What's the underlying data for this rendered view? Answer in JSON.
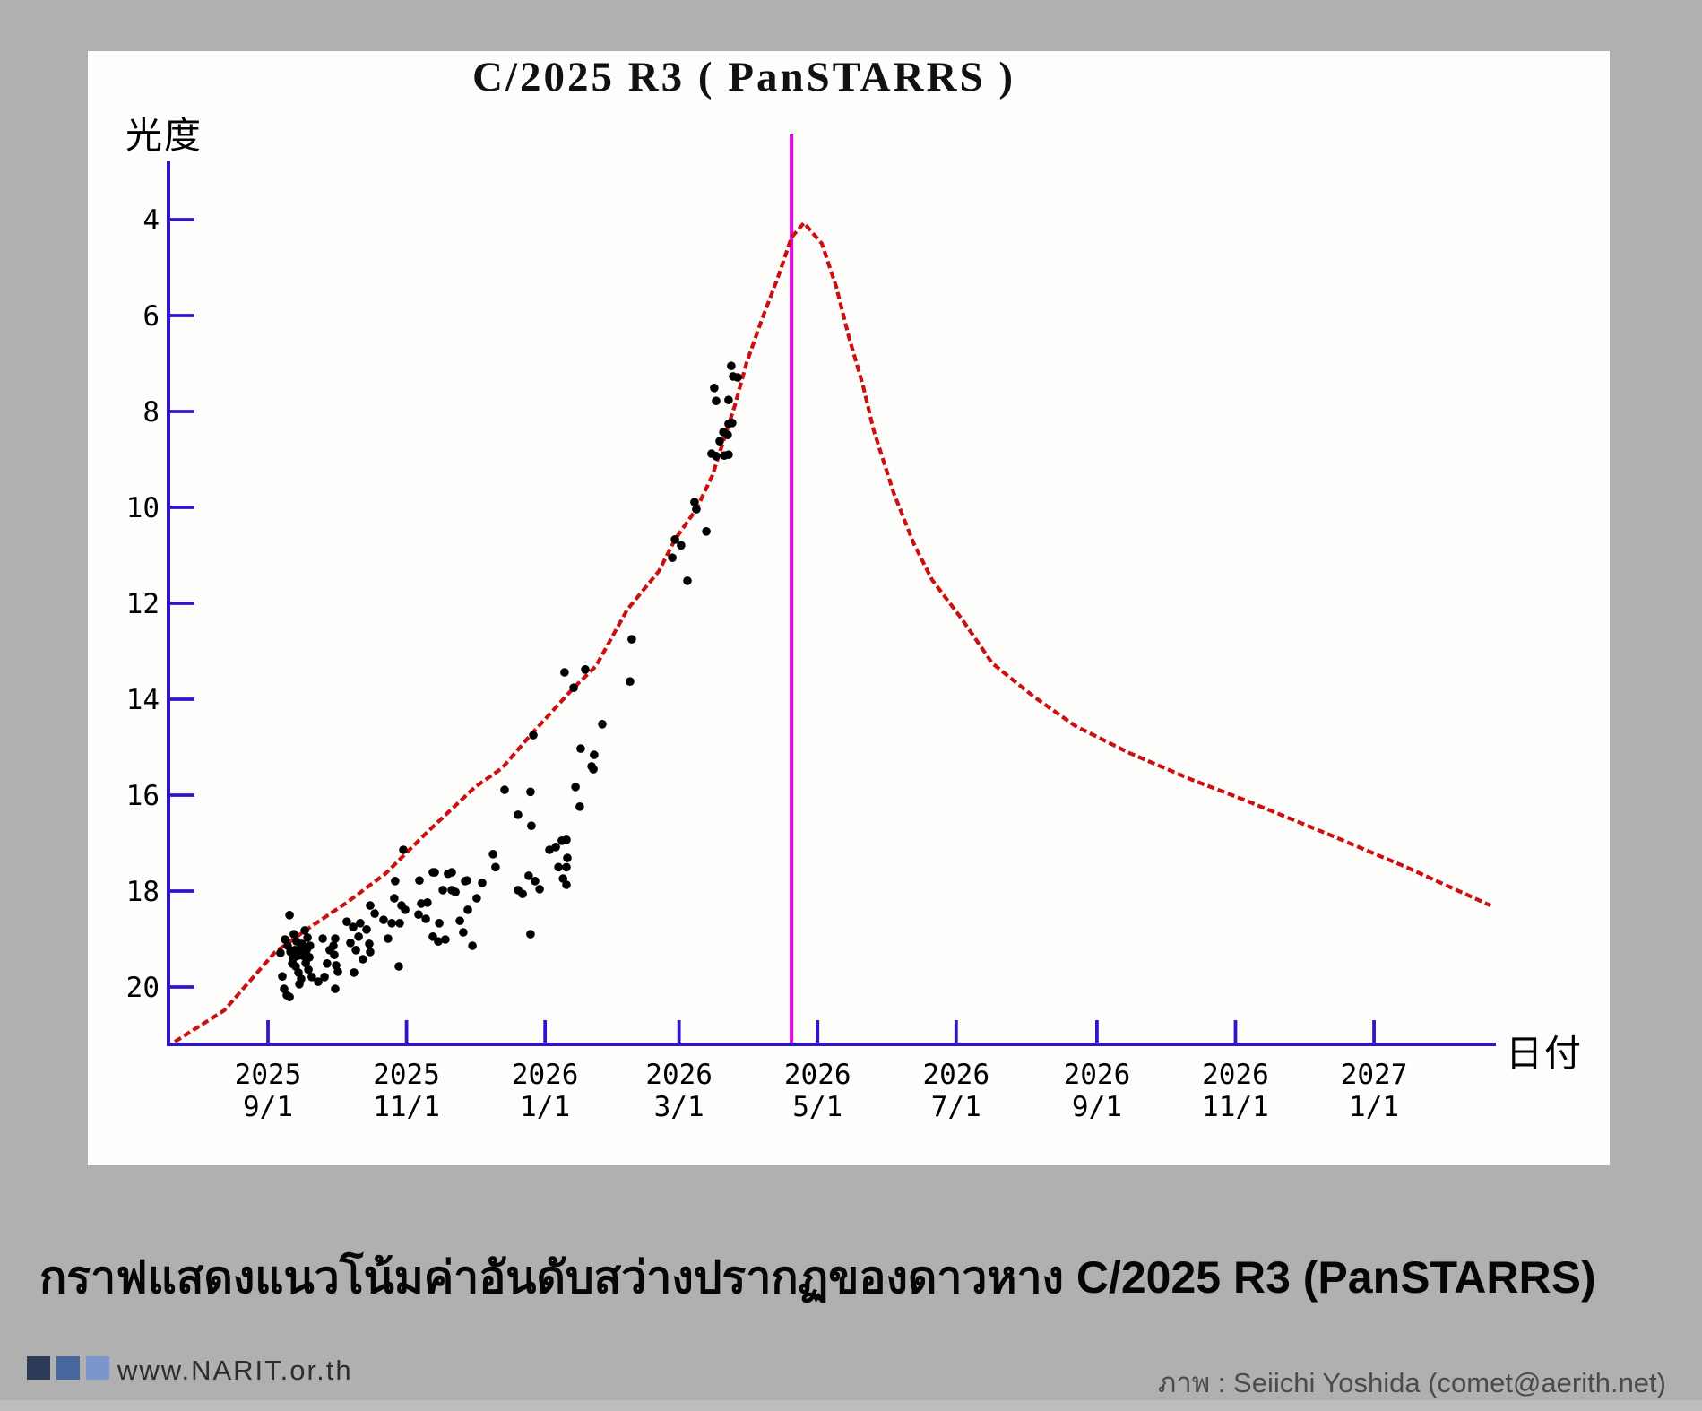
{
  "page": {
    "background": "#b0b0b0",
    "caption": "กราฟแสดงแนวโน้มค่าอันดับสว่างปรากฏของดาวหาง C/2025 R3 (PanSTARRS)",
    "footer": {
      "site": "www.NARIT.or.th",
      "credit": "ภาพ : Seiichi Yoshida (comet@aerith.net)",
      "logo_colors": [
        "#2c3a58",
        "#47689f",
        "#7a97cb"
      ]
    }
  },
  "chart_data": {
    "type": "scatter",
    "title": "C/2025 R3 ( PanSTARRS )",
    "ylabel": "光度",
    "xlabel": "日付",
    "legend": "none",
    "grid": false,
    "y_axis": {
      "inverted": true,
      "ticks": [
        4,
        6,
        8,
        10,
        12,
        14,
        16,
        18,
        20
      ],
      "range_mag": [
        2.8,
        21.2
      ],
      "meaning": "apparent magnitude (brighter = up)"
    },
    "x_axis": {
      "unit": "days since 2025-09-01",
      "range_days": [
        -45,
        545
      ],
      "ticks": [
        {
          "d": 0,
          "label": [
            "2025",
            "9/1"
          ]
        },
        {
          "d": 61,
          "label": [
            "2025",
            "11/1"
          ]
        },
        {
          "d": 122,
          "label": [
            "2026",
            "1/1"
          ]
        },
        {
          "d": 181,
          "label": [
            "2026",
            "3/1"
          ]
        },
        {
          "d": 242,
          "label": [
            "2026",
            "5/1"
          ]
        },
        {
          "d": 303,
          "label": [
            "2026",
            "7/1"
          ]
        },
        {
          "d": 365,
          "label": [
            "2026",
            "9/1"
          ]
        },
        {
          "d": 426,
          "label": [
            "2026",
            "11/1"
          ]
        },
        {
          "d": 487,
          "label": [
            "2027",
            "1/1"
          ]
        }
      ]
    },
    "perihelion_line_day": 230.5,
    "peak": {
      "d": 236,
      "mag": 4.05
    },
    "colors": {
      "axis": "#2f16c8",
      "curve": "#cc1010",
      "perihelion": "#ee00ee",
      "points": "#000000"
    },
    "model_curve": [
      [
        -41.0,
        21.14
      ],
      [
        -19.3,
        20.49
      ],
      [
        3.2,
        19.27
      ],
      [
        17.4,
        18.79
      ],
      [
        34.7,
        18.24
      ],
      [
        51.7,
        17.64
      ],
      [
        69.5,
        16.8
      ],
      [
        91.2,
        15.83
      ],
      [
        103.0,
        15.44
      ],
      [
        115.6,
        14.75
      ],
      [
        134.6,
        13.76
      ],
      [
        144.4,
        13.31
      ],
      [
        158.2,
        12.13
      ],
      [
        172.1,
        11.33
      ],
      [
        179.2,
        10.67
      ],
      [
        188.6,
        10.04
      ],
      [
        195.7,
        9.33
      ],
      [
        205.6,
        7.87
      ],
      [
        210.7,
        6.99
      ],
      [
        217.4,
        6.09
      ],
      [
        224.5,
        5.21
      ],
      [
        230.5,
        4.37
      ],
      [
        236.0,
        4.07
      ],
      [
        243.9,
        4.5
      ],
      [
        250.2,
        5.4
      ],
      [
        255.7,
        6.43
      ],
      [
        262.0,
        7.46
      ],
      [
        266.7,
        8.39
      ],
      [
        275.5,
        9.7
      ],
      [
        284.5,
        10.77
      ],
      [
        292.4,
        11.51
      ],
      [
        305.4,
        12.32
      ],
      [
        318.9,
        13.25
      ],
      [
        337.0,
        13.94
      ],
      [
        355.6,
        14.56
      ],
      [
        379.2,
        15.12
      ],
      [
        406.9,
        15.68
      ],
      [
        430.5,
        16.11
      ],
      [
        466.1,
        16.8
      ],
      [
        501.6,
        17.51
      ],
      [
        538.3,
        18.3
      ]
    ],
    "observations": [
      [
        5.5,
        19.29
      ],
      [
        6.3,
        19.78
      ],
      [
        7.1,
        20.04
      ],
      [
        8.3,
        20.17
      ],
      [
        9.5,
        20.21
      ],
      [
        13.8,
        19.94
      ],
      [
        9.5,
        18.5
      ],
      [
        7.5,
        19.01
      ],
      [
        8.7,
        19.14
      ],
      [
        9.9,
        19.27
      ],
      [
        11.0,
        19.42
      ],
      [
        12.2,
        19.57
      ],
      [
        13.4,
        19.7
      ],
      [
        14.6,
        19.83
      ],
      [
        11.4,
        18.9
      ],
      [
        12.6,
        19.05
      ],
      [
        14.2,
        19.2
      ],
      [
        15.4,
        19.35
      ],
      [
        16.6,
        19.5
      ],
      [
        17.8,
        19.64
      ],
      [
        16.2,
        18.82
      ],
      [
        17.4,
        18.97
      ],
      [
        18.5,
        19.14
      ],
      [
        19.3,
        19.79
      ],
      [
        10.7,
        19.51
      ],
      [
        11.8,
        19.23
      ],
      [
        15.0,
        19.1
      ],
      [
        18.2,
        19.38
      ],
      [
        13.0,
        19.35
      ],
      [
        17.0,
        19.23
      ],
      [
        22.1,
        19.89
      ],
      [
        24.1,
        18.99
      ],
      [
        26.0,
        19.51
      ],
      [
        27.2,
        19.23
      ],
      [
        28.8,
        19.14
      ],
      [
        29.6,
        18.99
      ],
      [
        29.2,
        19.33
      ],
      [
        30.0,
        19.55
      ],
      [
        30.8,
        19.68
      ],
      [
        29.6,
        20.04
      ],
      [
        24.9,
        19.79
      ],
      [
        34.7,
        18.64
      ],
      [
        37.5,
        18.75
      ],
      [
        39.9,
        18.95
      ],
      [
        40.6,
        18.67
      ],
      [
        43.4,
        18.8
      ],
      [
        44.6,
        19.1
      ],
      [
        45.0,
        19.27
      ],
      [
        45.0,
        18.3
      ],
      [
        47.0,
        18.47
      ],
      [
        36.3,
        19.08
      ],
      [
        38.7,
        19.23
      ],
      [
        41.8,
        19.42
      ],
      [
        37.9,
        19.7
      ],
      [
        50.9,
        18.6
      ],
      [
        54.5,
        18.67
      ],
      [
        58.0,
        18.67
      ],
      [
        55.6,
        18.15
      ],
      [
        58.8,
        18.3
      ],
      [
        56.0,
        17.79
      ],
      [
        59.6,
        17.14
      ],
      [
        57.6,
        19.57
      ],
      [
        60.4,
        18.39
      ],
      [
        52.9,
        18.99
      ],
      [
        66.7,
        17.78
      ],
      [
        72.6,
        17.61
      ],
      [
        80.9,
        17.61
      ],
      [
        86.8,
        17.79
      ],
      [
        77.0,
        17.98
      ],
      [
        80.9,
        17.98
      ],
      [
        66.3,
        18.49
      ],
      [
        70.2,
        18.24
      ],
      [
        72.6,
        18.95
      ],
      [
        75.0,
        19.05
      ],
      [
        78.1,
        19.01
      ],
      [
        84.5,
        18.62
      ],
      [
        88.0,
        18.39
      ],
      [
        90.0,
        19.14
      ],
      [
        94.3,
        17.83
      ],
      [
        87.6,
        17.78
      ],
      [
        82.5,
        18.02
      ],
      [
        79.3,
        17.64
      ],
      [
        73.4,
        17.61
      ],
      [
        67.5,
        18.26
      ],
      [
        69.5,
        18.58
      ],
      [
        75.4,
        18.67
      ],
      [
        86.0,
        18.86
      ],
      [
        91.9,
        18.15
      ],
      [
        99.1,
        17.23
      ],
      [
        100.2,
        17.5
      ],
      [
        104.2,
        15.89
      ],
      [
        110.1,
        16.41
      ],
      [
        115.6,
        15.93
      ],
      [
        116.0,
        16.64
      ],
      [
        114.8,
        17.68
      ],
      [
        117.6,
        17.79
      ],
      [
        119.6,
        17.96
      ],
      [
        110.1,
        17.98
      ],
      [
        112.1,
        18.06
      ],
      [
        123.9,
        17.14
      ],
      [
        126.7,
        17.08
      ],
      [
        129.4,
        16.95
      ],
      [
        131.4,
        16.93
      ],
      [
        131.8,
        17.31
      ],
      [
        131.4,
        17.5
      ],
      [
        127.9,
        17.5
      ],
      [
        129.9,
        17.74
      ],
      [
        131.4,
        17.87
      ],
      [
        116.8,
        14.75
      ],
      [
        115.6,
        18.9
      ],
      [
        130.6,
        13.44
      ],
      [
        139.7,
        13.38
      ],
      [
        134.6,
        13.76
      ],
      [
        147.2,
        14.52
      ],
      [
        160.2,
        12.75
      ],
      [
        159.4,
        13.63
      ],
      [
        137.7,
        15.03
      ],
      [
        143.6,
        15.16
      ],
      [
        143.3,
        15.46
      ],
      [
        135.4,
        15.83
      ],
      [
        137.3,
        16.24
      ],
      [
        142.5,
        15.4
      ],
      [
        188.6,
        10.04
      ],
      [
        193.0,
        10.5
      ],
      [
        179.2,
        10.67
      ],
      [
        181.9,
        10.79
      ],
      [
        178.0,
        11.05
      ],
      [
        184.7,
        11.53
      ],
      [
        187.8,
        9.89
      ],
      [
        204.0,
        7.05
      ],
      [
        204.8,
        7.27
      ],
      [
        206.8,
        7.29
      ],
      [
        196.5,
        7.51
      ],
      [
        197.3,
        7.78
      ],
      [
        202.8,
        7.76
      ],
      [
        202.8,
        8.26
      ],
      [
        204.4,
        8.24
      ],
      [
        200.5,
        8.43
      ],
      [
        202.4,
        8.49
      ],
      [
        198.9,
        8.62
      ],
      [
        195.3,
        8.88
      ],
      [
        197.3,
        8.93
      ],
      [
        200.9,
        8.92
      ],
      [
        202.8,
        8.9
      ]
    ]
  }
}
